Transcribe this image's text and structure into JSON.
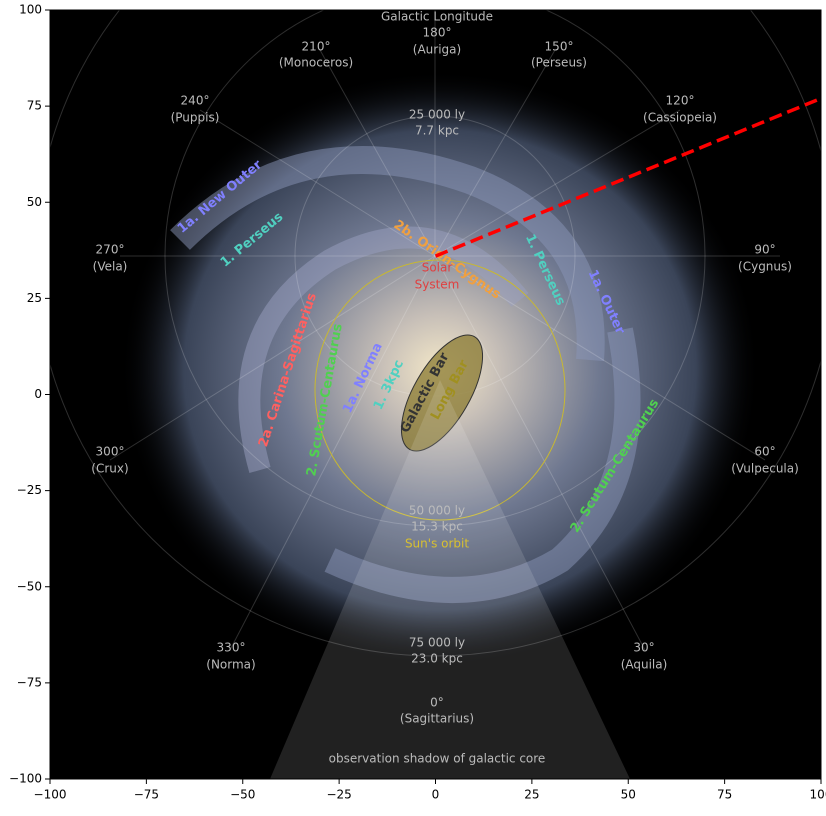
{
  "chart_data": {
    "type": "line",
    "x": [
      0,
      100
    ],
    "series": [
      {
        "color": "#ff0000",
        "dashed": true,
        "values": [
          36,
          77
        ]
      }
    ],
    "xlim": [
      -100,
      100
    ],
    "ylim": [
      -100,
      100
    ],
    "xticks": [
      {
        "value": -100,
        "label": "−100"
      },
      {
        "value": -75,
        "label": "−75"
      },
      {
        "value": -50,
        "label": "−50"
      },
      {
        "value": -25,
        "label": "−25"
      },
      0,
      25,
      50,
      75,
      100
    ],
    "yticks": [
      {
        "value": -100,
        "label": "−100"
      },
      {
        "value": -75,
        "label": "−75"
      },
      {
        "value": -50,
        "label": "−50"
      },
      {
        "value": -25,
        "label": "−25"
      },
      0,
      25,
      50,
      75,
      100
    ],
    "grid": false,
    "annotations": [
      {
        "text": "Galactic Longitude",
        "color": "#bbbbbb"
      },
      {
        "text": "180°",
        "color": "#bbbbbb"
      },
      {
        "text": "(Auriga)",
        "color": "#bbbbbb"
      },
      {
        "text": "210°",
        "color": "#bbbbbb"
      },
      {
        "text": "(Monoceros)",
        "color": "#bbbbbb"
      },
      {
        "text": "150°",
        "color": "#bbbbbb"
      },
      {
        "text": "(Perseus)",
        "color": "#bbbbbb"
      },
      {
        "text": "240°",
        "color": "#bbbbbb"
      },
      {
        "text": "(Puppis)",
        "color": "#bbbbbb"
      },
      {
        "text": "120°",
        "color": "#bbbbbb"
      },
      {
        "text": "(Cassiopeia)",
        "color": "#bbbbbb"
      },
      {
        "text": "270°",
        "color": "#bbbbbb"
      },
      {
        "text": "(Vela)",
        "color": "#bbbbbb"
      },
      {
        "text": "90°",
        "color": "#bbbbbb"
      },
      {
        "text": "(Cygnus)",
        "color": "#bbbbbb"
      },
      {
        "text": "300°",
        "color": "#bbbbbb"
      },
      {
        "text": "(Crux)",
        "color": "#bbbbbb"
      },
      {
        "text": "60°",
        "color": "#bbbbbb"
      },
      {
        "text": "(Vulpecula)",
        "color": "#bbbbbb"
      },
      {
        "text": "330°",
        "color": "#bbbbbb"
      },
      {
        "text": "(Norma)",
        "color": "#bbbbbb"
      },
      {
        "text": "30°",
        "color": "#bbbbbb"
      },
      {
        "text": "(Aquila)",
        "color": "#bbbbbb"
      },
      {
        "text": "0°",
        "color": "#bbbbbb"
      },
      {
        "text": "(Sagittarius)",
        "color": "#bbbbbb"
      },
      {
        "text": "25 000 ly",
        "color": "#bbbbbb"
      },
      {
        "text": "7.7 kpc",
        "color": "#bbbbbb"
      },
      {
        "text": "50 000 ly",
        "color": "#bbbbbb"
      },
      {
        "text": "15.3 kpc",
        "color": "#bbbbbb"
      },
      {
        "text": "75 000 ly",
        "color": "#bbbbbb"
      },
      {
        "text": "23.0 kpc",
        "color": "#bbbbbb"
      },
      {
        "text": "Sun's orbit",
        "color": "#d8c030"
      },
      {
        "text": "Solar",
        "color": "#e04040"
      },
      {
        "text": "System",
        "color": "#e04040"
      },
      {
        "text": "observation shadow of galactic core",
        "color": "#bbbbbb"
      },
      {
        "text": "1a. New Outer",
        "color": "#8080ff"
      },
      {
        "text": "1. Perseus",
        "color": "#50d0c0"
      },
      {
        "text": "2b. Orion-Cygnus",
        "color": "#f0a040"
      },
      {
        "text": "1. Perseus",
        "color": "#50d0c0"
      },
      {
        "text": "1a. Outer",
        "color": "#8080ff"
      },
      {
        "text": "2a. Carina-Sagittarius",
        "color": "#ff6060"
      },
      {
        "text": "2. Scutum-Centaurus",
        "color": "#50d050"
      },
      {
        "text": "1a. Norma",
        "color": "#8080ff"
      },
      {
        "text": "1. 3kpc",
        "color": "#50d0c0"
      },
      {
        "text": "Galactic Bar",
        "color": "#333333"
      },
      {
        "text": "Long Bar",
        "color": "#a09020"
      },
      {
        "text": "2. Scutum-Centaurus",
        "color": "#50d050"
      }
    ]
  }
}
